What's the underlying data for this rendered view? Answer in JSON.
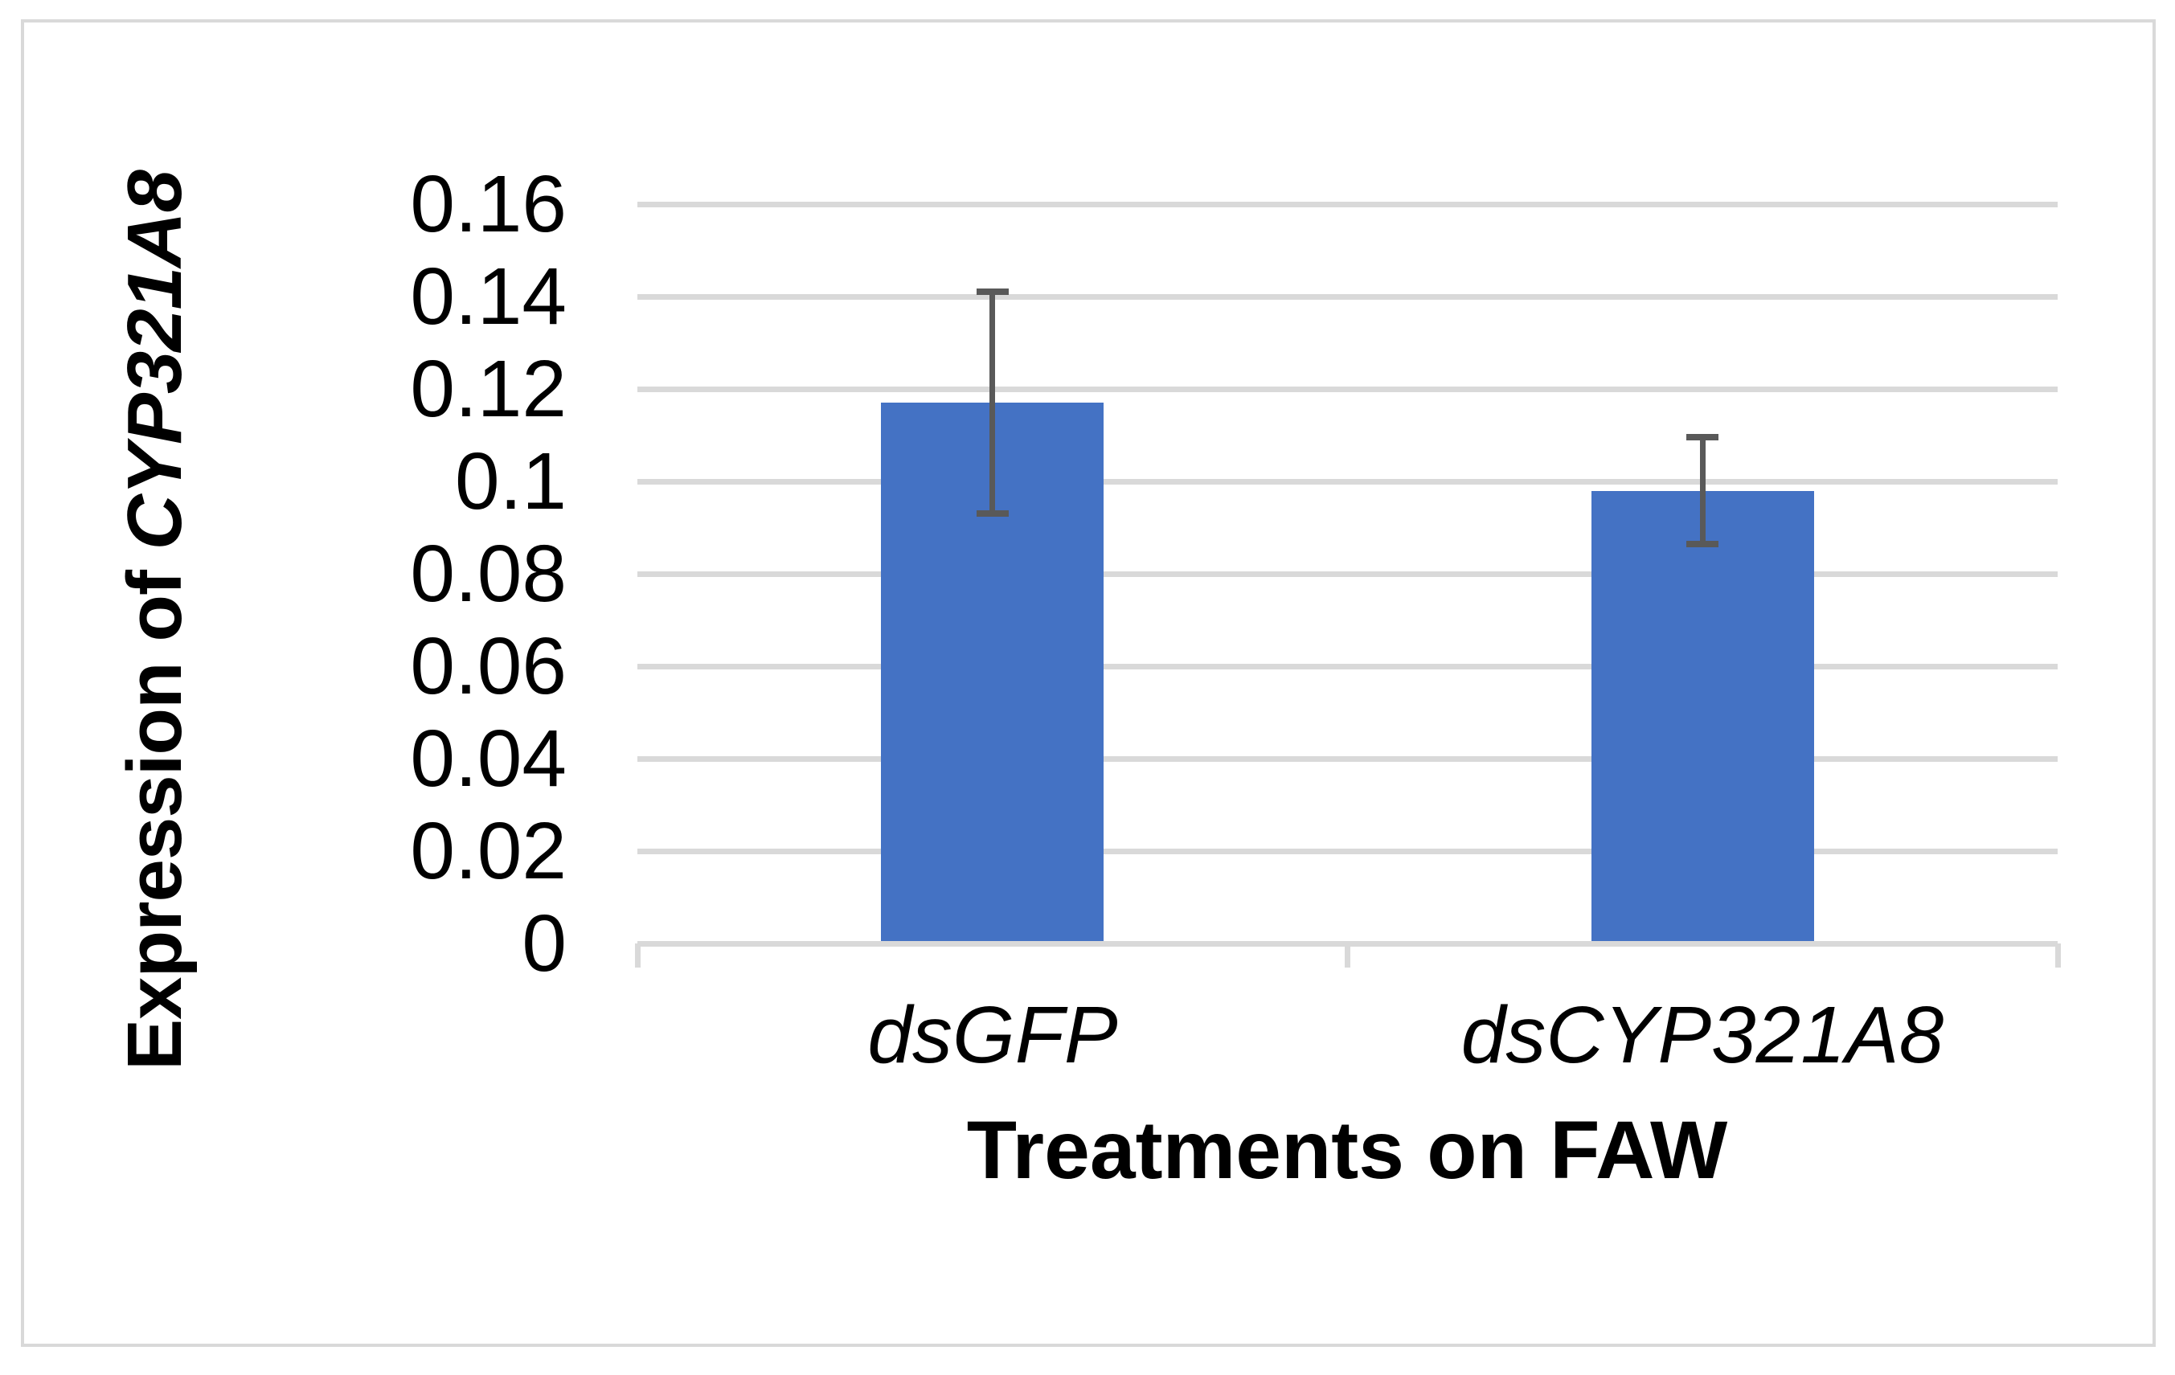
{
  "chart_data": {
    "type": "bar",
    "title": "",
    "categories": [
      "dsGFP",
      "dsCYP321A8"
    ],
    "values": [
      0.117,
      0.098
    ],
    "errors": [
      0.024,
      0.0115
    ],
    "xlabel": "Treatments on FAW",
    "ylabel": "Expression of CYP321A8",
    "ylabel_regular_part": "Expression of ",
    "ylabel_italic_part": "CYP321A8",
    "ylim": [
      0,
      0.16
    ],
    "ytick_step": 0.02,
    "ytick_labels": [
      "0",
      "0.02",
      "0.04",
      "0.06",
      "0.08",
      "0.1",
      "0.12",
      "0.14",
      "0.16"
    ],
    "grid": true,
    "legend_position": "none",
    "category_label_style": "italic",
    "styles": {
      "bar_color": "#4472C4",
      "error_bar_color": "#595959",
      "gridline_color": "#D9D9D9",
      "axis_line_color": "#D9D9D9",
      "border_color": "#D9D9D9",
      "text_color": "#000000",
      "background": "#FFFFFF"
    }
  }
}
